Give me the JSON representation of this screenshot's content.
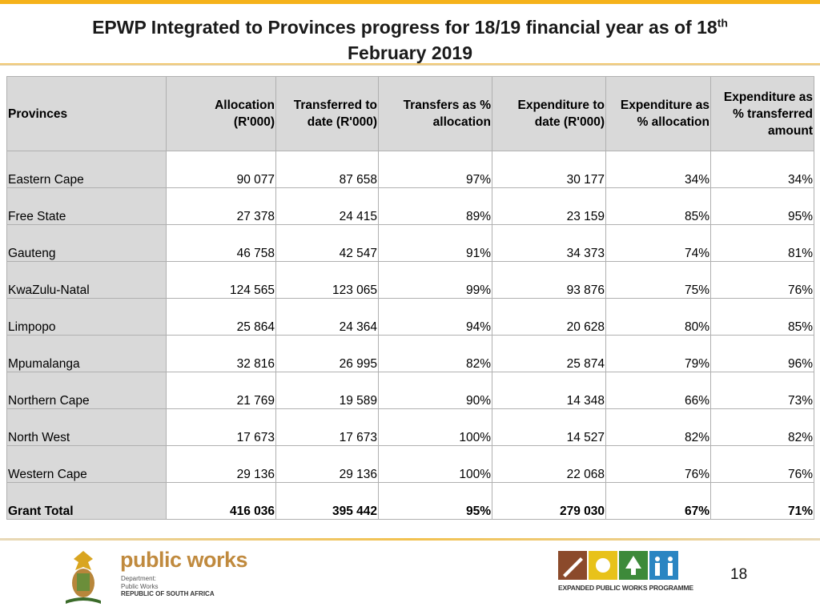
{
  "title": {
    "text": "EPWP  Integrated to Provinces progress for 18/19 financial year as of 18",
    "superscript": "th",
    "text_line2": "February 2019"
  },
  "table": {
    "headers": [
      [
        "Provinces"
      ],
      [
        "Allocation",
        "(R'000)"
      ],
      [
        "Transferred to",
        "date (R'000)"
      ],
      [
        "Transfers as %",
        "allocation"
      ],
      [
        "Expenditure to",
        "date (R'000)"
      ],
      [
        "Expenditure as",
        "%  allocation"
      ],
      [
        "Expenditure as",
        "% transferred",
        "amount"
      ]
    ],
    "rows": [
      [
        "Eastern Cape",
        "90 077",
        "87 658",
        "97%",
        "30 177",
        "34%",
        "34%"
      ],
      [
        "Free State",
        "27 378",
        "24 415",
        "89%",
        "23 159",
        "85%",
        "95%"
      ],
      [
        "Gauteng",
        "46 758",
        "42 547",
        "91%",
        "34 373",
        "74%",
        "81%"
      ],
      [
        "KwaZulu-Natal",
        "124 565",
        "123 065",
        "99%",
        "93 876",
        "75%",
        "76%"
      ],
      [
        "Limpopo",
        "25 864",
        "24 364",
        "94%",
        "20 628",
        "80%",
        "85%"
      ],
      [
        "Mpumalanga",
        "32 816",
        "26 995",
        "82%",
        "25 874",
        "79%",
        "96%"
      ],
      [
        "Northern Cape",
        "21 769",
        "19 589",
        "90%",
        "14 348",
        "66%",
        "73%"
      ],
      [
        "North West",
        "17 673",
        "17 673",
        "100%",
        "14 527",
        "82%",
        "82%"
      ],
      [
        "Western Cape",
        "29 136",
        "29 136",
        "100%",
        "22 068",
        "76%",
        "76%"
      ]
    ],
    "total": [
      "Grant Total",
      "416 036",
      "395 442",
      "95%",
      "279 030",
      "67%",
      "71%"
    ]
  },
  "footer": {
    "brand": "public works",
    "brand_lines": [
      "Department:",
      "Public Works",
      "REPUBLIC OF SOUTH AFRICA"
    ],
    "programme": "EXPANDED PUBLIC WORKS PROGRAMME",
    "page_number": "18"
  }
}
